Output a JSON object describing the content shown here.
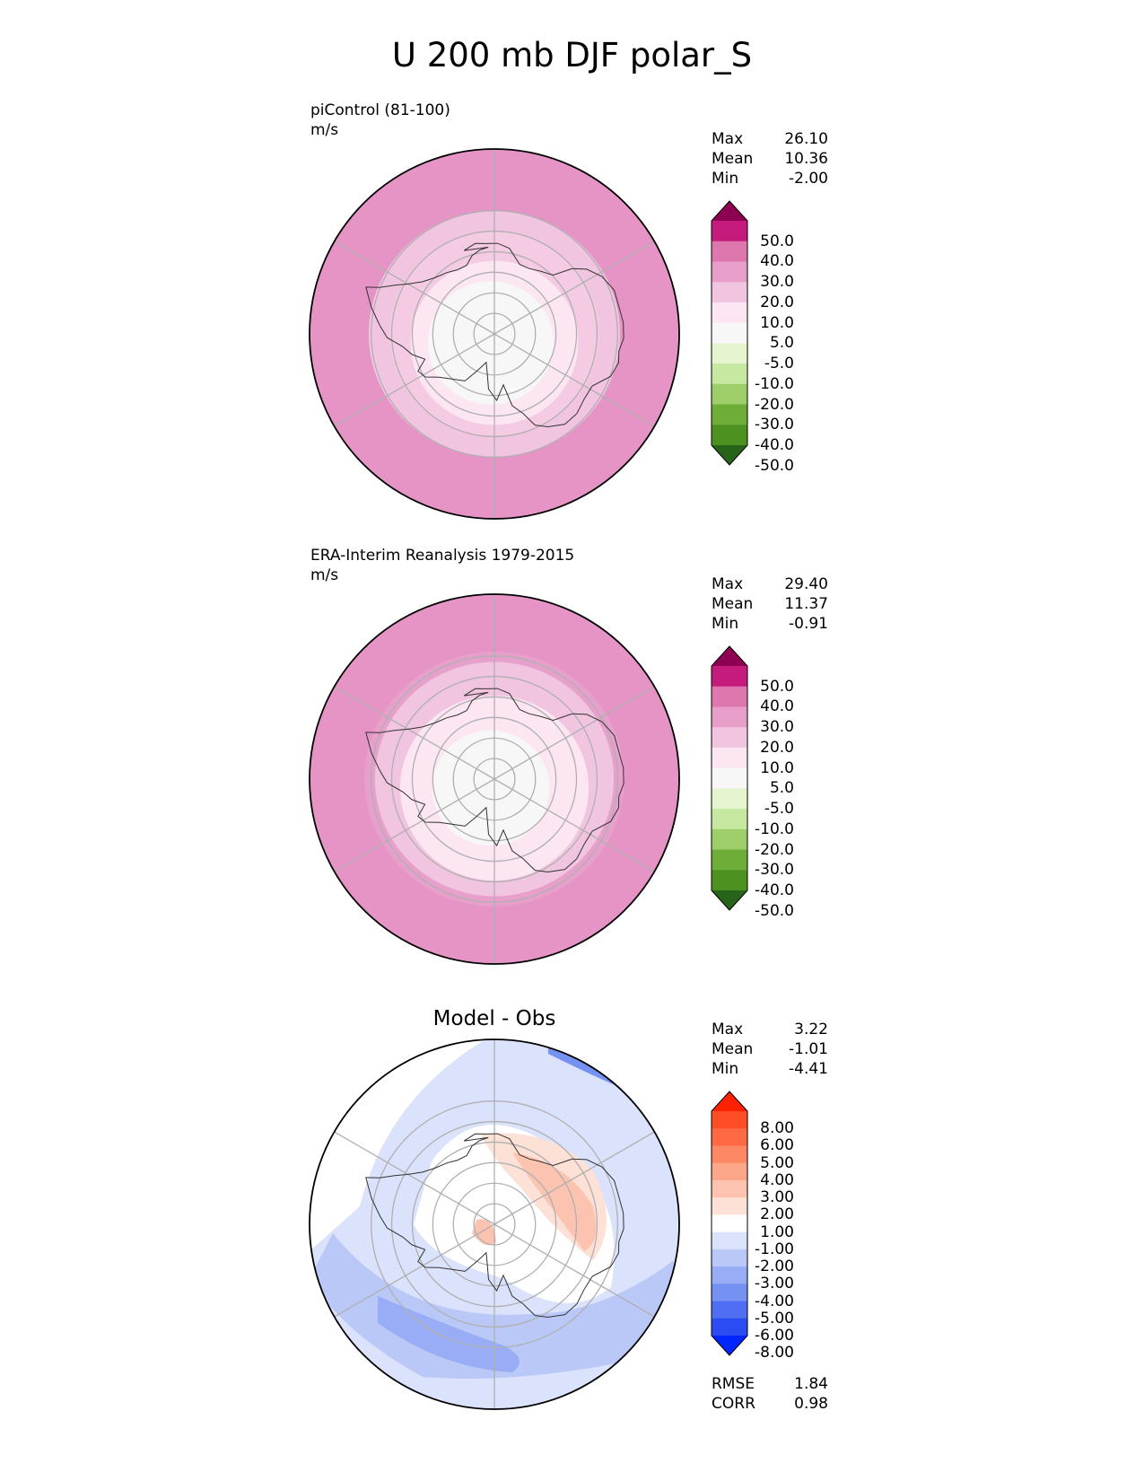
{
  "title": "U 200 mb DJF polar_S",
  "panels": [
    {
      "id": "model",
      "label": "piControl (81-100)",
      "units": "m/s",
      "stats": {
        "max_label": "Max",
        "max": "26.10",
        "mean_label": "Mean",
        "mean": "10.36",
        "min_label": "Min",
        "min": "-2.00"
      },
      "colorbar": {
        "labels": [
          "50.0",
          "40.0",
          "30.0",
          "20.0",
          "10.0",
          "5.0",
          "-5.0",
          "-10.0",
          "-20.0",
          "-30.0",
          "-40.0",
          "-50.0"
        ],
        "colors": [
          "#8e0152",
          "#c51b7d",
          "#de77ae",
          "#e79ec9",
          "#f1c4e0",
          "#fbe6f1",
          "#f7f7f7",
          "#e6f5d0",
          "#c7e8a1",
          "#9ece6a",
          "#6fad39",
          "#4d9221",
          "#276419"
        ]
      },
      "field_bands": [
        {
          "lat": -20,
          "color": "#e594c5"
        },
        {
          "lat": -30,
          "color": "#f1c4e0"
        },
        {
          "lat": -40,
          "color": "#f4cbe3"
        },
        {
          "lat": -50,
          "color": "#fbe6f1"
        },
        {
          "lat": -60,
          "color": "#f7f7f7"
        }
      ]
    },
    {
      "id": "obs",
      "label": "ERA-Interim Reanalysis 1979-2015",
      "units": "m/s",
      "stats": {
        "max_label": "Max",
        "max": "29.40",
        "mean_label": "Mean",
        "mean": "11.37",
        "min_label": "Min",
        "min": "-0.91"
      },
      "colorbar": {
        "labels": [
          "50.0",
          "40.0",
          "30.0",
          "20.0",
          "10.0",
          "5.0",
          "-5.0",
          "-10.0",
          "-20.0",
          "-30.0",
          "-40.0",
          "-50.0"
        ],
        "colors": [
          "#8e0152",
          "#c51b7d",
          "#de77ae",
          "#e79ec9",
          "#f1c4e0",
          "#fbe6f1",
          "#f7f7f7",
          "#e6f5d0",
          "#c7e8a1",
          "#9ece6a",
          "#6fad39",
          "#4d9221",
          "#276419"
        ]
      },
      "field_bands": [
        {
          "lat": -20,
          "color": "#e594c5"
        },
        {
          "lat": -28,
          "color": "#e7a0cc"
        },
        {
          "lat": -33,
          "color": "#f1c4e0"
        },
        {
          "lat": -45,
          "color": "#fbe6f1"
        },
        {
          "lat": -62,
          "color": "#f7f7f7"
        }
      ]
    },
    {
      "id": "diff",
      "title": "Model - Obs",
      "stats": {
        "max_label": "Max",
        "max": "3.22",
        "mean_label": "Mean",
        "mean": "-1.01",
        "min_label": "Min",
        "min": "-4.41"
      },
      "metrics": {
        "rmse_label": "RMSE",
        "rmse": "1.84",
        "corr_label": "CORR",
        "corr": "0.98"
      },
      "colorbar": {
        "labels": [
          "8.00",
          "6.00",
          "5.00",
          "4.00",
          "3.00",
          "2.00",
          "1.00",
          "-1.00",
          "-2.00",
          "-3.00",
          "-4.00",
          "-5.00",
          "-6.00",
          "-8.00"
        ],
        "colors": [
          "#ff2200",
          "#ff4d26",
          "#ff6a45",
          "#fc8866",
          "#fca68a",
          "#fcc3b0",
          "#fde0d6",
          "#ffffff",
          "#dbe2fb",
          "#bac8f8",
          "#98adf5",
          "#7592f3",
          "#4f6ef2",
          "#2c4cf3",
          "#0026ff"
        ]
      }
    }
  ]
}
